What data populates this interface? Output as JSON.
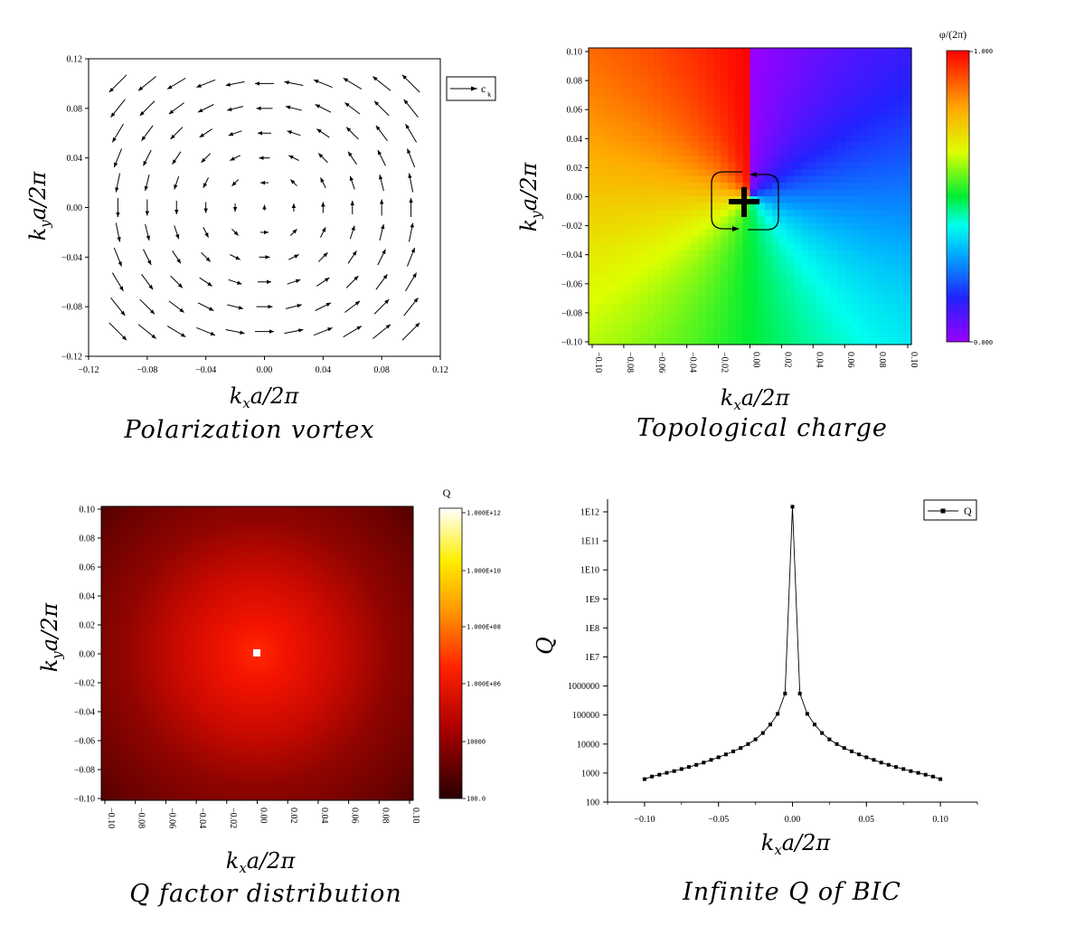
{
  "chart_data": [
    {
      "type": "quiver",
      "title": "Polarization vortex",
      "xlabel": "k_x a/2π",
      "ylabel": "k_y a/2π",
      "xlim": [
        -0.12,
        0.12
      ],
      "ylim": [
        -0.12,
        0.12
      ],
      "xticks": [
        "−0.12",
        "−0.08",
        "−0.04",
        "0.00",
        "0.04",
        "0.08",
        "0.12"
      ],
      "yticks": [
        "0.12",
        "0.08",
        "0.04",
        "0.00",
        "−0.04",
        "−0.08",
        "−0.12"
      ],
      "legend": {
        "label": "c",
        "subscript": "k",
        "position": "top-right-outside"
      },
      "grid_x": [
        -0.1,
        0.1,
        11
      ],
      "grid_y": [
        -0.1,
        0.1,
        11
      ],
      "field": "vortex"
    },
    {
      "type": "heatmap",
      "title": "Topological charge",
      "xlabel": "k_x a/2π",
      "ylabel": "k_y a/2π",
      "xlim": [
        -0.1,
        0.1
      ],
      "ylim": [
        -0.1,
        0.1
      ],
      "xticks": [
        "−0.10",
        "−0.08",
        "−0.06",
        "−0.04",
        "−0.02",
        "0.00",
        "0.02",
        "0.04",
        "0.06",
        "0.08",
        "0.10"
      ],
      "yticks": [
        "0.10",
        "0.08",
        "0.06",
        "0.04",
        "0.02",
        "0.00",
        "−0.02",
        "−0.04",
        "−0.06",
        "−0.08",
        "−0.10"
      ],
      "colorbar": {
        "title": "φ/(2π)",
        "max": "1.000",
        "min": "0.000",
        "colormap": "rainbow"
      },
      "value": "phase of polarization / 2π",
      "annotation": "+ (topological charge +1)"
    },
    {
      "type": "heatmap",
      "title": "Q factor distribution",
      "xlabel": "k_x a/2π",
      "ylabel": "k_y a/2π",
      "xlim": [
        -0.1,
        0.1
      ],
      "ylim": [
        -0.1,
        0.1
      ],
      "xticks": [
        "−0.10",
        "−0.08",
        "−0.06",
        "−0.04",
        "−0.02",
        "0.00",
        "0.02",
        "0.04",
        "0.06",
        "0.08",
        "0.10"
      ],
      "yticks": [
        "0.10",
        "0.08",
        "0.06",
        "0.04",
        "0.02",
        "0.00",
        "−0.02",
        "−0.04",
        "−0.06",
        "−0.08",
        "−0.10"
      ],
      "colorbar": {
        "title": "Q",
        "ticks": [
          "1.000E+12",
          "1.000E+10",
          "1.000E+08",
          "1.000E+06",
          "10000",
          "100.0"
        ],
        "scale": "log",
        "colormap": "hot"
      }
    },
    {
      "type": "line",
      "title": "Infinite Q of BIC",
      "xlabel": "k_x a/2π",
      "ylabel": "Q",
      "yscale": "log",
      "xlim": [
        -0.125,
        0.125
      ],
      "ylim": [
        100,
        2000000000000.0
      ],
      "xticks": [
        "−0.10",
        "−0.05",
        "0.00",
        "0.05",
        "0.10"
      ],
      "yticks": [
        "1E12",
        "1E11",
        "1E10",
        "1E9",
        "1E8",
        "1E7",
        "1000000",
        "100000",
        "10000",
        "1000",
        "100"
      ],
      "legend": {
        "label": "Q",
        "position": "top-right"
      },
      "series": [
        {
          "name": "Q",
          "x": [
            -0.1,
            -0.095,
            -0.09,
            -0.085,
            -0.08,
            -0.075,
            -0.07,
            -0.065,
            -0.06,
            -0.055,
            -0.05,
            -0.045,
            -0.04,
            -0.035,
            -0.03,
            -0.025,
            -0.02,
            -0.015,
            -0.01,
            -0.005,
            0.0,
            0.005,
            0.01,
            0.015,
            0.02,
            0.025,
            0.03,
            0.035,
            0.04,
            0.045,
            0.05,
            0.055,
            0.06,
            0.065,
            0.07,
            0.075,
            0.08,
            0.085,
            0.09,
            0.095,
            0.1
          ],
          "y": [
            620,
            760,
            880,
            1020,
            1170,
            1380,
            1620,
            1920,
            2300,
            2850,
            3500,
            4400,
            5600,
            7300,
            10000,
            14500,
            24000,
            47000,
            110000,
            550000,
            1500000000000,
            550000,
            110000,
            47000,
            24000,
            14500,
            10000,
            7300,
            5600,
            4400,
            3500,
            2850,
            2300,
            1920,
            1620,
            1380,
            1170,
            1020,
            880,
            760,
            620
          ]
        }
      ]
    }
  ]
}
